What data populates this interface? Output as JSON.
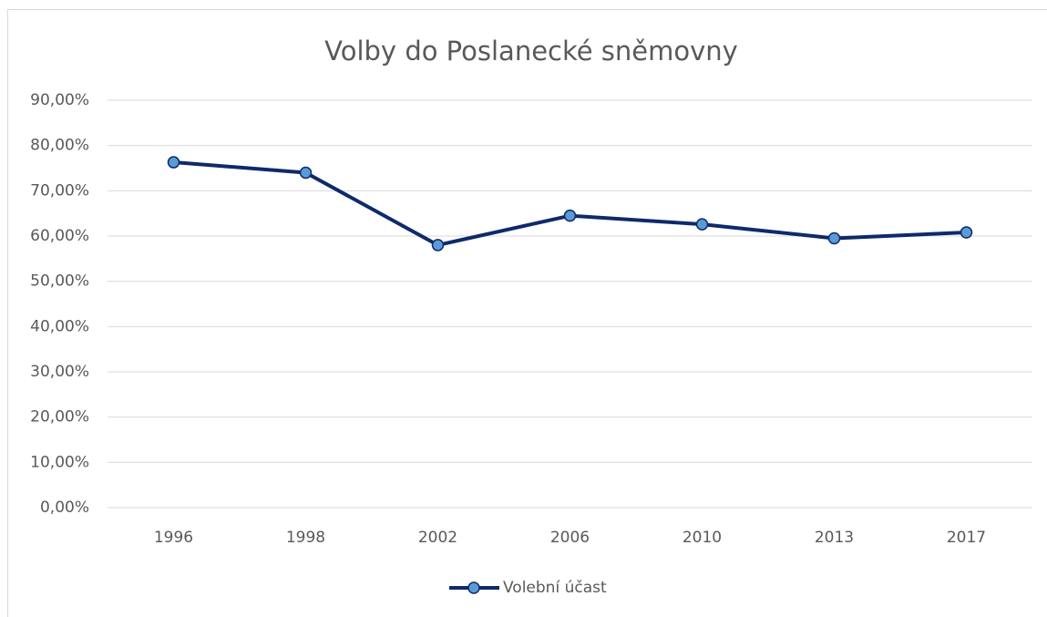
{
  "chart_data": {
    "type": "line",
    "title": "Volby do Poslanecké sněmovny",
    "categories": [
      "1996",
      "1998",
      "2002",
      "2006",
      "2010",
      "2013",
      "2017"
    ],
    "series": [
      {
        "name": "Volební účast",
        "color": "#0e2a6b",
        "marker_color": "#5b9bd5",
        "values": [
          76.3,
          74.0,
          58.0,
          64.5,
          62.6,
          59.5,
          60.8
        ]
      }
    ],
    "ylim": [
      0,
      90
    ],
    "yticks": [
      {
        "value": 0,
        "label": "0,00%"
      },
      {
        "value": 10,
        "label": "10,00%"
      },
      {
        "value": 20,
        "label": "20,00%"
      },
      {
        "value": 30,
        "label": "30,00%"
      },
      {
        "value": 40,
        "label": "40,00%"
      },
      {
        "value": 50,
        "label": "50,00%"
      },
      {
        "value": 60,
        "label": "60,00%"
      },
      {
        "value": 70,
        "label": "70,00%"
      },
      {
        "value": 80,
        "label": "80,00%"
      },
      {
        "value": 90,
        "label": "90,00%"
      }
    ],
    "grid": true,
    "legend": "bottom"
  }
}
